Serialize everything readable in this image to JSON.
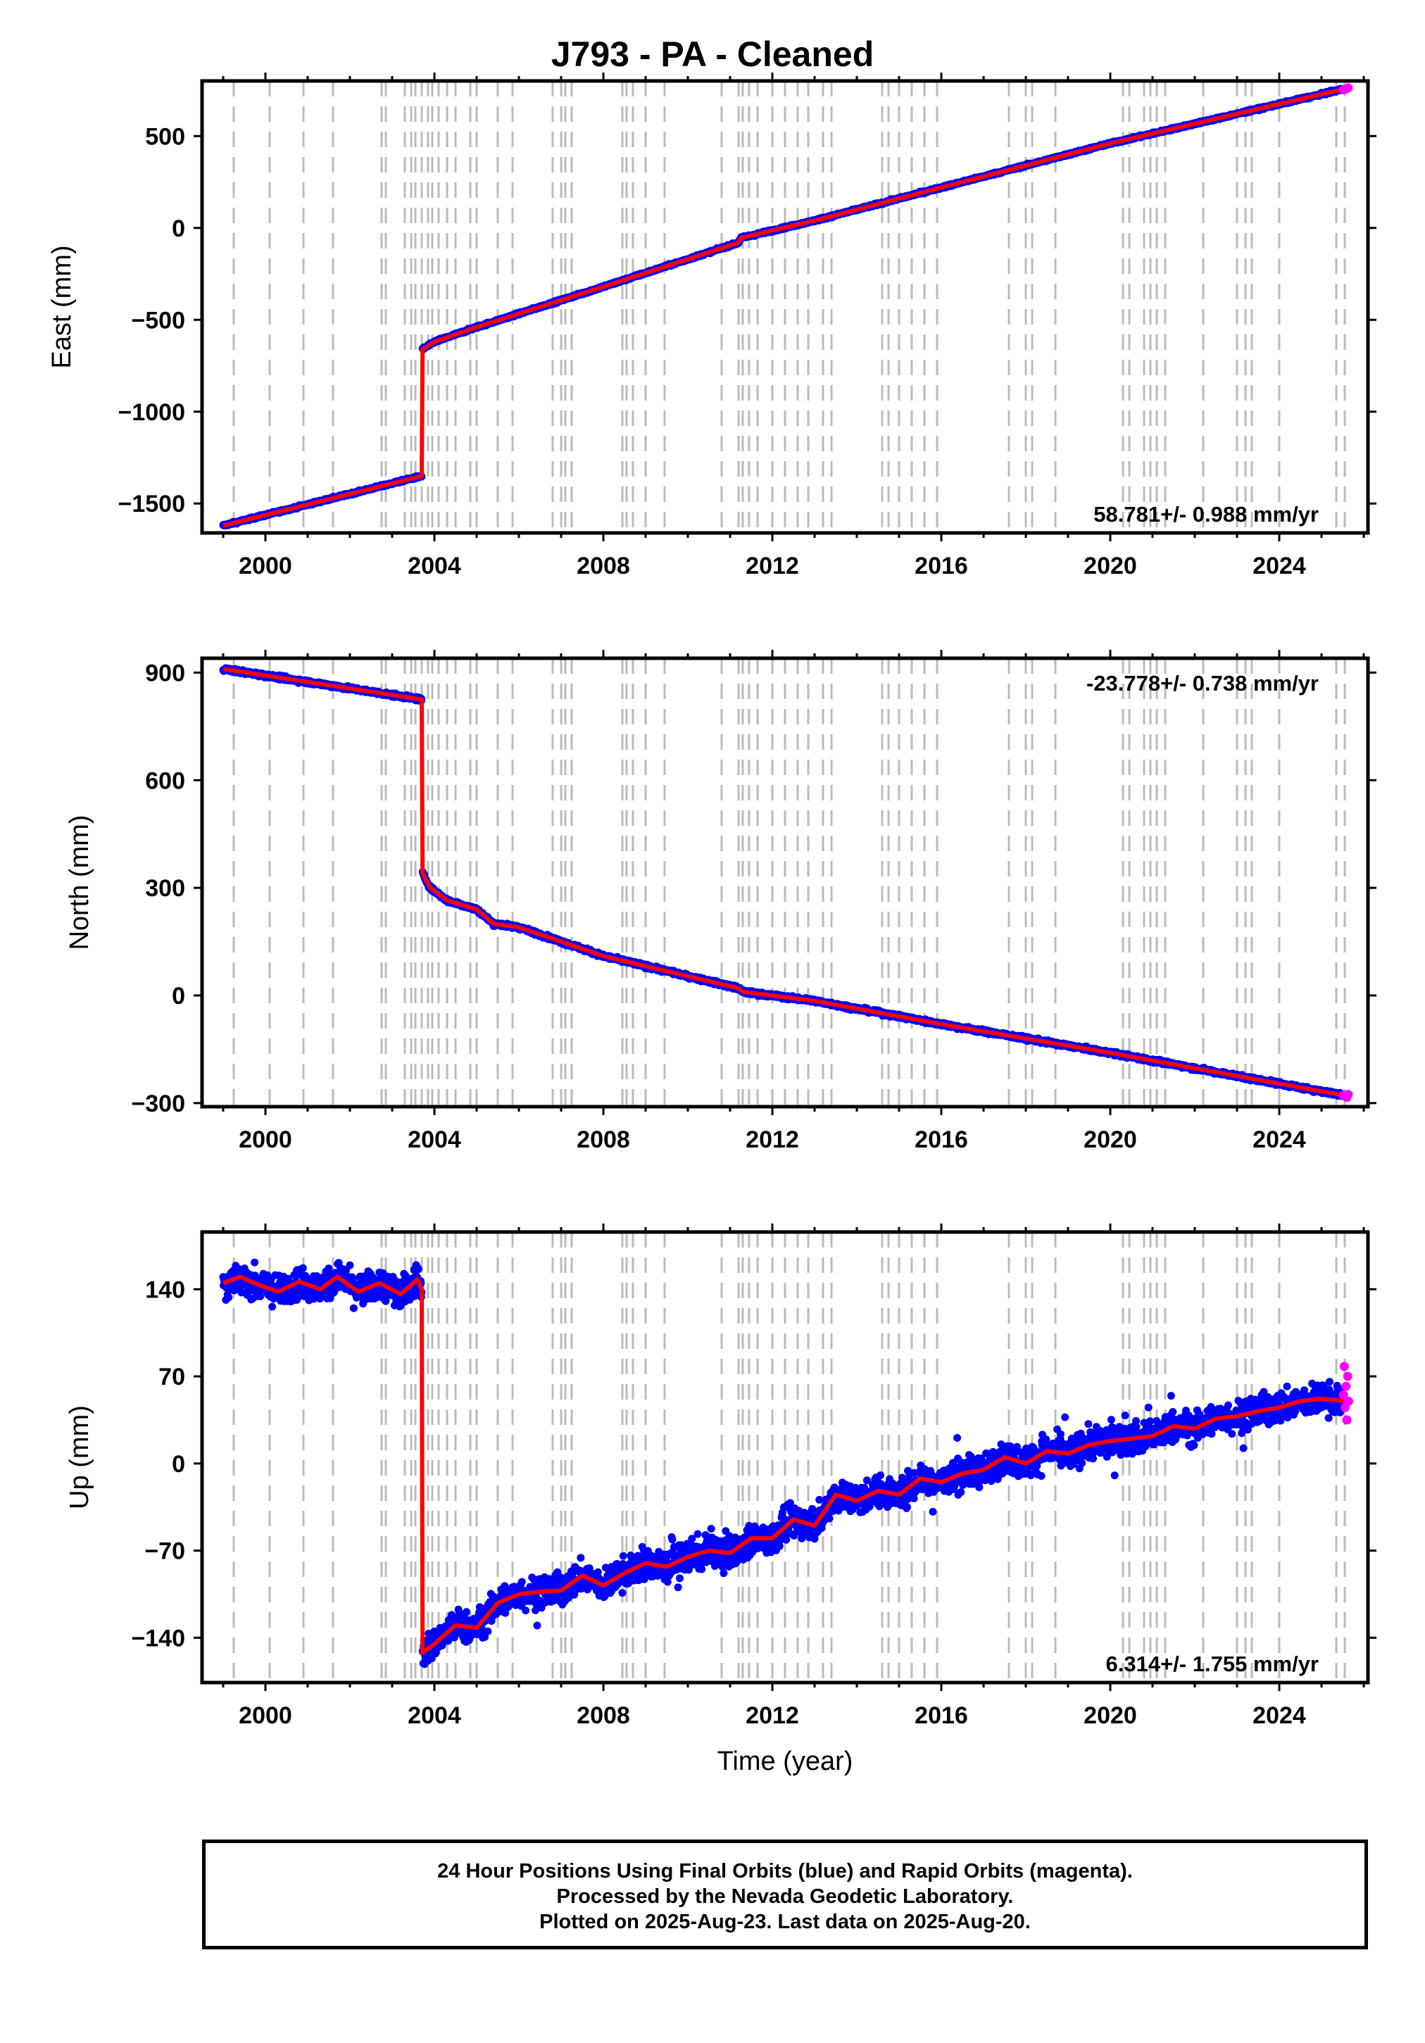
{
  "title": "J793  - PA - Cleaned",
  "footer": {
    "line1": "24 Hour Positions Using Final Orbits (blue) and Rapid Orbits (magenta).",
    "line2": "Processed by the Nevada Geodetic Laboratory.",
    "line3": "Plotted on 2025-Aug-23. Last data on 2025-Aug-20."
  },
  "colors": {
    "final_orbit_points": "#0000ff",
    "rapid_orbit_points": "#ff00ff",
    "model_fit": "#ff0000",
    "event_lines": "#bbbbbb"
  },
  "chart_data": [
    {
      "type": "scatter",
      "ylabel": "East (mm)",
      "xlabel": "",
      "xlim": [
        1998.5,
        2026.1
      ],
      "ylim": [
        -1660,
        800
      ],
      "xticks": [
        2000,
        2004,
        2008,
        2012,
        2016,
        2020,
        2024
      ],
      "xtick_labels": [
        "2000",
        "2004",
        "2008",
        "2012",
        "2016",
        "2020",
        "2024"
      ],
      "yticks": [
        -1500,
        -1000,
        -500,
        0,
        500
      ],
      "ytick_labels": [
        "−1500",
        "−1000",
        "−500",
        "0",
        "500"
      ],
      "velocity_label": "58.781+/- 0.988 mm/yr",
      "velocity_label_position": "bottom-right",
      "scatter": 6,
      "series": [
        {
          "role": "model_fit",
          "x": [
            1999.0,
            2003.7,
            2003.72,
            2004.0,
            2005.0,
            2008.0,
            2011.2,
            2011.25,
            2013.0,
            2016.0,
            2020.0,
            2025.6
          ],
          "values": [
            -1620,
            -1350,
            -660,
            -620,
            -540,
            -320,
            -80,
            -55,
            40,
            220,
            460,
            760
          ]
        },
        {
          "role": "rapid_orbits",
          "x": [
            2025.52,
            2025.56,
            2025.6,
            2025.63
          ],
          "values": [
            752,
            755,
            759,
            762
          ]
        }
      ]
    },
    {
      "type": "scatter",
      "ylabel": "North (mm)",
      "xlabel": "",
      "xlim": [
        1998.5,
        2026.1
      ],
      "ylim": [
        -310,
        940
      ],
      "xticks": [
        2000,
        2004,
        2008,
        2012,
        2016,
        2020,
        2024
      ],
      "xtick_labels": [
        "2000",
        "2004",
        "2008",
        "2012",
        "2016",
        "2020",
        "2024"
      ],
      "yticks": [
        -300,
        0,
        300,
        600,
        900
      ],
      "ytick_labels": [
        "−300",
        "0",
        "300",
        "600",
        "900"
      ],
      "velocity_label": "-23.778+/- 0.738 mm/yr",
      "velocity_label_position": "top-right",
      "scatter": 5,
      "series": [
        {
          "role": "model_fit",
          "x": [
            1999.0,
            2003.7,
            2003.72,
            2003.9,
            2004.3,
            2005.0,
            2005.4,
            2006.0,
            2008.0,
            2011.2,
            2011.3,
            2013.0,
            2016.0,
            2020.0,
            2025.6
          ],
          "values": [
            910,
            825,
            340,
            300,
            265,
            240,
            200,
            190,
            110,
            20,
            10,
            -15,
            -80,
            -160,
            -280
          ]
        },
        {
          "role": "rapid_orbits",
          "x": [
            2025.52,
            2025.56,
            2025.6,
            2025.63
          ],
          "values": [
            -278,
            -281,
            -284,
            -276
          ]
        }
      ]
    },
    {
      "type": "scatter",
      "ylabel": "Up (mm)",
      "xlabel": "Time (year)",
      "xlim": [
        1998.5,
        2026.1
      ],
      "ylim": [
        -176,
        186
      ],
      "xticks": [
        2000,
        2004,
        2008,
        2012,
        2016,
        2020,
        2024
      ],
      "xtick_labels": [
        "2000",
        "2004",
        "2008",
        "2012",
        "2016",
        "2020",
        "2024"
      ],
      "yticks": [
        -140,
        -70,
        0,
        70,
        140
      ],
      "ytick_labels": [
        "−140",
        "−70",
        "0",
        "70",
        "140"
      ],
      "velocity_label": "6.314+/- 1.755 mm/yr",
      "velocity_label_position": "bottom-right",
      "scatter": 12,
      "series": [
        {
          "role": "model_fit",
          "x": [
            1999.0,
            1999.4,
            1999.8,
            2000.3,
            2000.8,
            2001.3,
            2001.7,
            2002.2,
            2002.7,
            2003.2,
            2003.6,
            2003.7,
            2003.72,
            2004.0,
            2004.5,
            2005.0,
            2005.5,
            2006.0,
            2006.5,
            2007.0,
            2007.5,
            2008.0,
            2008.5,
            2009.0,
            2009.5,
            2010.0,
            2010.5,
            2011.0,
            2011.5,
            2012.0,
            2012.5,
            2013.0,
            2013.5,
            2014.0,
            2014.5,
            2015.0,
            2015.5,
            2016.0,
            2016.5,
            2017.0,
            2017.5,
            2018.0,
            2018.5,
            2019.0,
            2019.5,
            2020.0,
            2020.5,
            2021.0,
            2021.5,
            2022.0,
            2022.5,
            2023.0,
            2023.5,
            2024.0,
            2024.5,
            2025.0,
            2025.6
          ],
          "values": [
            145,
            150,
            144,
            138,
            146,
            140,
            150,
            138,
            145,
            136,
            148,
            140,
            -152,
            -145,
            -130,
            -132,
            -112,
            -105,
            -103,
            -102,
            -90,
            -98,
            -88,
            -80,
            -83,
            -75,
            -70,
            -72,
            -60,
            -60,
            -45,
            -50,
            -25,
            -30,
            -22,
            -25,
            -12,
            -15,
            -8,
            -5,
            5,
            0,
            10,
            8,
            15,
            18,
            20,
            22,
            30,
            28,
            36,
            38,
            42,
            45,
            50,
            52,
            50
          ]
        },
        {
          "role": "rapid_orbits",
          "x": [
            2025.52,
            2025.54,
            2025.56,
            2025.58,
            2025.6,
            2025.62,
            2025.64
          ],
          "values": [
            55,
            78,
            45,
            62,
            35,
            70,
            50
          ]
        }
      ]
    }
  ],
  "event_lines_x": [
    1999.25,
    2000.1,
    2000.9,
    2001.6,
    2002.75,
    2002.85,
    2003.3,
    2003.45,
    2003.55,
    2003.7,
    2003.85,
    2003.95,
    2004.1,
    2004.3,
    2004.5,
    2004.85,
    2005.0,
    2005.5,
    2005.85,
    2006.8,
    2007.0,
    2007.1,
    2007.25,
    2008.45,
    2008.55,
    2008.7,
    2009.0,
    2009.45,
    2010.8,
    2011.2,
    2011.3,
    2011.45,
    2011.65,
    2012.0,
    2012.3,
    2012.6,
    2012.85,
    2013.2,
    2013.4,
    2014.6,
    2014.75,
    2015.0,
    2015.3,
    2015.6,
    2015.9,
    2017.6,
    2018.0,
    2018.15,
    2018.7,
    2020.3,
    2020.45,
    2020.8,
    2020.95,
    2021.1,
    2021.3,
    2022.2,
    2023.0,
    2023.2,
    2023.35,
    2024.0,
    2025.35,
    2025.55
  ]
}
